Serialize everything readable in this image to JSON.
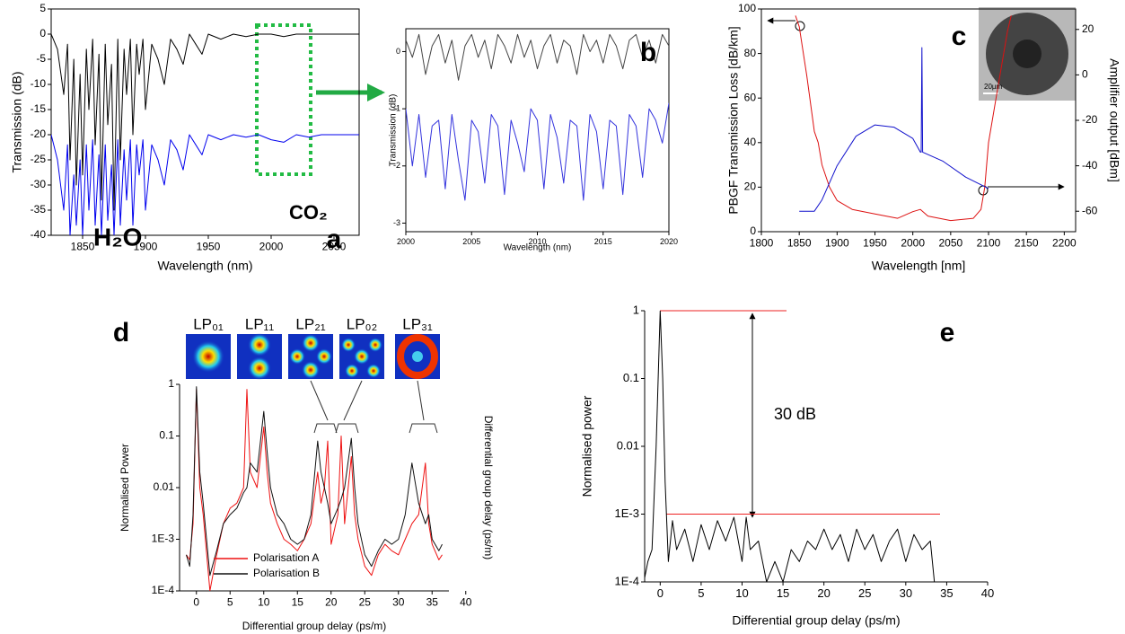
{
  "chart_data": [
    {
      "type": "line",
      "panel_label": "a",
      "xlabel": "Wavelength (nm)",
      "ylabel": "Transmission (dB)",
      "xlim": [
        1825,
        2070
      ],
      "ylim": [
        -40,
        5
      ],
      "xticks": [
        1850,
        1900,
        1950,
        2000,
        2050
      ],
      "yticks": [
        -40,
        -35,
        -30,
        -25,
        -20,
        -15,
        -10,
        -5,
        0,
        5
      ],
      "annotations": [
        "H₂O",
        "CO₂"
      ],
      "x": [
        1825,
        1830,
        1835,
        1838,
        1840,
        1843,
        1845,
        1848,
        1850,
        1853,
        1855,
        1858,
        1860,
        1863,
        1865,
        1868,
        1870,
        1873,
        1875,
        1878,
        1880,
        1883,
        1885,
        1888,
        1890,
        1893,
        1895,
        1898,
        1900,
        1905,
        1910,
        1915,
        1920,
        1925,
        1930,
        1935,
        1940,
        1945,
        1950,
        1960,
        1970,
        1980,
        1990,
        2000,
        2010,
        2020,
        2030,
        2040,
        2050,
        2060,
        2070
      ],
      "series": [
        {
          "color": "#000000",
          "values": [
            0,
            -3,
            -12,
            -2,
            -25,
            -5,
            -30,
            -8,
            -28,
            -3,
            -15,
            -1,
            -22,
            -4,
            -33,
            -2,
            -18,
            -6,
            -35,
            -1,
            -25,
            -3,
            -12,
            -1,
            -20,
            -2,
            -8,
            -1,
            -15,
            -2,
            -5,
            -10,
            -1,
            -3,
            -6,
            0,
            -2,
            -4,
            0,
            -1,
            0,
            -0.5,
            0,
            0,
            -0.5,
            0,
            0,
            0,
            0,
            0,
            0
          ]
        },
        {
          "color": "#0000ee",
          "values": [
            -20,
            -25,
            -35,
            -22,
            -40,
            -28,
            -38,
            -25,
            -40,
            -22,
            -35,
            -21,
            -38,
            -24,
            -40,
            -22,
            -37,
            -26,
            -40,
            -21,
            -38,
            -23,
            -33,
            -21,
            -38,
            -22,
            -28,
            -21,
            -35,
            -22,
            -25,
            -30,
            -21,
            -23,
            -27,
            -20,
            -22,
            -24,
            -20,
            -21,
            -20,
            -20.5,
            -20,
            -21,
            -21.5,
            -20,
            -20.5,
            -20,
            -20,
            -20,
            -20
          ]
        }
      ]
    },
    {
      "type": "line",
      "panel_label": "b",
      "xlabel": "Wavelength (nm)",
      "ylabel": "Transmission (dB)",
      "xlim": [
        2000,
        2020
      ],
      "ylim": [
        -3.15,
        0.4
      ],
      "xticks": [
        2000,
        2005,
        2010,
        2015,
        2020
      ],
      "yticks": [
        -3,
        -2,
        -1,
        0
      ],
      "x": [
        2000,
        2000.5,
        2001,
        2001.5,
        2002,
        2002.5,
        2003,
        2003.5,
        2004,
        2004.5,
        2005,
        2005.5,
        2006,
        2006.5,
        2007,
        2007.5,
        2008,
        2008.5,
        2009,
        2009.5,
        2010,
        2010.5,
        2011,
        2011.5,
        2012,
        2012.5,
        2013,
        2013.5,
        2014,
        2014.5,
        2015,
        2015.5,
        2016,
        2016.5,
        2017,
        2017.5,
        2018,
        2018.5,
        2019,
        2019.5,
        2020
      ],
      "series": [
        {
          "color": "#444444",
          "values": [
            0.2,
            -0.1,
            0.3,
            -0.4,
            0.1,
            0.3,
            -0.2,
            0.2,
            -0.5,
            0.1,
            0.3,
            -0.1,
            0.2,
            -0.3,
            0.3,
            0.1,
            -0.2,
            0.3,
            -0.1,
            0.2,
            -0.3,
            0.1,
            0.3,
            -0.2,
            0.2,
            0.1,
            -0.4,
            0.3,
            0,
            0.2,
            -0.2,
            0.3,
            0.1,
            -0.3,
            0.2,
            0.3,
            -0.1,
            0.2,
            -0.2,
            0.3,
            0.1
          ]
        },
        {
          "color": "#3333dd",
          "values": [
            -1,
            -2,
            -1.1,
            -2.2,
            -1.3,
            -1.2,
            -2.4,
            -1.1,
            -1.9,
            -2.6,
            -1.2,
            -1.4,
            -2.3,
            -1.1,
            -1.3,
            -2.5,
            -1.2,
            -1.6,
            -2.1,
            -1,
            -1.2,
            -2.4,
            -1.1,
            -1.5,
            -2.3,
            -1.2,
            -1.3,
            -2.6,
            -1.1,
            -1.4,
            -2.4,
            -1.2,
            -1.3,
            -2.5,
            -1.1,
            -1.3,
            -2.2,
            -1,
            -1.2,
            -1.6,
            -0.9
          ]
        }
      ]
    },
    {
      "type": "line",
      "panel_label": "c",
      "xlabel": "Wavelength [nm]",
      "ylabel": "PBGF Transmission Loss [dB/km]",
      "y2label": "Amplifier output [dBm]",
      "xlim": [
        1800,
        2215
      ],
      "ylim": [
        0,
        100
      ],
      "y2lim": [
        -69,
        29
      ],
      "xticks": [
        1800,
        1850,
        1900,
        1950,
        2000,
        2050,
        2100,
        2150,
        2200
      ],
      "yticks": [
        0,
        20,
        40,
        60,
        80,
        100
      ],
      "y2ticks": [
        -60,
        -40,
        -20,
        0,
        20
      ],
      "annotations": [
        "20µm"
      ],
      "series": [
        {
          "color": "#dd1111",
          "x": [
            1845,
            1850,
            1860,
            1870,
            1875,
            1880,
            1890,
            1900,
            1920,
            1950,
            1980,
            2000,
            2010,
            2020,
            2050,
            2080,
            2090,
            2095,
            2100,
            2110,
            2125,
            2130
          ],
          "values": [
            97,
            92,
            70,
            45,
            40,
            30,
            20,
            14,
            10,
            8,
            6,
            9,
            10,
            7,
            5,
            6,
            10,
            20,
            40,
            60,
            90,
            97
          ]
        },
        {
          "color": "#1111cc",
          "axis": "y2",
          "x": [
            1850,
            1870,
            1880,
            1900,
            1925,
            1950,
            1975,
            2000,
            2010,
            2011,
            2012,
            2013,
            2040,
            2070,
            2100
          ],
          "values": [
            -60,
            -60,
            -55,
            -40,
            -27,
            -22,
            -23,
            -28,
            -34,
            -34,
            12,
            -34,
            -38,
            -45,
            -50
          ]
        }
      ]
    },
    {
      "type": "line",
      "panel_label": "d",
      "xlabel": "Differential group delay (ps/m)",
      "ylabel": "Normalised Power",
      "y2label": "Differential group delay (ps/m)",
      "log_y": true,
      "xlim": [
        -2.5,
        37.5
      ],
      "ylim": [
        0.0001,
        1
      ],
      "xticks": [
        0,
        5,
        10,
        15,
        20,
        25,
        30,
        35,
        40
      ],
      "yticks": [
        {
          "value": 0.0001,
          "label": "1E-4"
        },
        {
          "value": 0.001,
          "label": "1E-3"
        },
        0.01,
        0.1,
        1
      ],
      "annotations": [
        "LP₀₁",
        "LP₁₁",
        "LP₂₁",
        "LP₀₂",
        "LP₃₁"
      ],
      "legend": "lower left",
      "x": [
        -1.5,
        -1,
        -0.5,
        0,
        0.5,
        1,
        2,
        3,
        4,
        5,
        6,
        7,
        7.5,
        8,
        9,
        10,
        10.5,
        11,
        12,
        13,
        14,
        15,
        16,
        17,
        18,
        18.5,
        19,
        19.5,
        20,
        21,
        21.5,
        22,
        23,
        23.5,
        24,
        25,
        26,
        27,
        28,
        29,
        30,
        31,
        32,
        33,
        34,
        34.5,
        35,
        36,
        36.5
      ],
      "series": [
        {
          "name": "Polarisation A",
          "color": "#ee1111",
          "values": [
            0.0005,
            0.0004,
            0.002,
            0.8,
            0.01,
            0.003,
            0.0001,
            0.0005,
            0.002,
            0.004,
            0.005,
            0.01,
            0.8,
            0.02,
            0.01,
            0.15,
            0.02,
            0.005,
            0.002,
            0.001,
            0.0008,
            0.0006,
            0.001,
            0.002,
            0.02,
            0.005,
            0.01,
            0.08,
            0.0008,
            0.003,
            0.1,
            0.002,
            0.04,
            0.003,
            0.001,
            0.0003,
            0.0002,
            0.0005,
            0.0008,
            0.0006,
            0.0005,
            0.001,
            0.002,
            0.003,
            0.03,
            0.002,
            0.0008,
            0.0004,
            0.0005
          ]
        },
        {
          "name": "Polarisation B",
          "color": "#111111",
          "values": [
            0.0005,
            0.0003,
            0.003,
            0.9,
            0.02,
            0.005,
            0.0002,
            0.0006,
            0.002,
            0.003,
            0.004,
            0.008,
            0.01,
            0.03,
            0.02,
            0.3,
            0.05,
            0.01,
            0.003,
            0.002,
            0.001,
            0.0008,
            0.001,
            0.003,
            0.08,
            0.02,
            0.01,
            0.005,
            0.002,
            0.004,
            0.006,
            0.01,
            0.09,
            0.01,
            0.002,
            0.0005,
            0.0003,
            0.0006,
            0.001,
            0.0008,
            0.001,
            0.003,
            0.03,
            0.005,
            0.002,
            0.003,
            0.001,
            0.0006,
            0.0008
          ]
        }
      ]
    },
    {
      "type": "line",
      "panel_label": "e",
      "xlabel": "Differential group delay (ps/m)",
      "ylabel": "Normalised power",
      "log_y": true,
      "xlim": [
        -1.9,
        40
      ],
      "ylim": [
        0.0001,
        1
      ],
      "xticks": [
        0,
        5,
        10,
        15,
        20,
        25,
        30,
        35,
        40
      ],
      "yticks": [
        {
          "value": 0.0001,
          "label": "1E-4"
        },
        {
          "value": 0.001,
          "label": "1E-3"
        },
        0.01,
        0.1,
        1
      ],
      "annotations": [
        "30 dB"
      ],
      "reference_levels": [
        1,
        0.001
      ],
      "reference_color": "#ee2222",
      "x": [
        -2,
        -1.5,
        -1,
        -0.5,
        0,
        0.3,
        0.6,
        1,
        1.5,
        2,
        3,
        4,
        5,
        6,
        7,
        8,
        9,
        10,
        10.5,
        11,
        12,
        13,
        14,
        15,
        16,
        17,
        18,
        19,
        20,
        21,
        22,
        23,
        24,
        25,
        26,
        27,
        28,
        29,
        30,
        31,
        32,
        33,
        33.5
      ],
      "series": [
        {
          "color": "#000000",
          "values": [
            0.0001,
            0.0002,
            0.0003,
            0.01,
            1,
            0.1,
            0.003,
            0.0002,
            0.0008,
            0.0003,
            0.0006,
            0.0002,
            0.0007,
            0.0003,
            0.0008,
            0.0004,
            0.0009,
            0.0002,
            0.0009,
            0.0003,
            0.0004,
            0.0001,
            0.0002,
            0.0001,
            0.0003,
            0.0002,
            0.0004,
            0.0003,
            0.0006,
            0.0003,
            0.0005,
            0.0002,
            0.0006,
            0.0003,
            0.0005,
            0.0002,
            0.0004,
            0.0006,
            0.0002,
            0.0005,
            0.0003,
            0.0004,
            0.0001
          ]
        }
      ]
    }
  ]
}
